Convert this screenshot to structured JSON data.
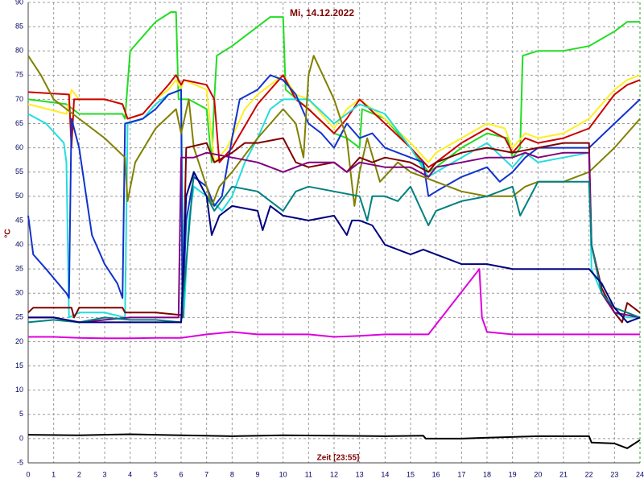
{
  "chart_data": {
    "type": "line",
    "title": "Mi, 14.12.2022",
    "x_label": "Zeit [23:55]",
    "y_label": "°C",
    "xlim": [
      0,
      24
    ],
    "ylim": [
      -5,
      90
    ],
    "xticks": [
      0,
      1,
      2,
      3,
      4,
      5,
      6,
      7,
      8,
      9,
      10,
      11,
      12,
      13,
      14,
      15,
      16,
      17,
      18,
      19,
      20,
      21,
      22,
      23,
      24
    ],
    "yticks": [
      -5,
      0,
      5,
      10,
      15,
      20,
      25,
      30,
      35,
      40,
      45,
      50,
      55,
      60,
      65,
      70,
      75,
      80,
      85,
      90
    ],
    "grid": true,
    "series": [
      {
        "color": "#22dd22",
        "x": [
          0,
          1.5,
          2,
          3.7,
          3.8,
          4,
          5,
          5.6,
          5.8,
          5.9,
          6.3,
          7,
          7.2,
          7.3,
          7.4,
          8,
          9,
          9.5,
          10,
          10.1,
          11,
          12,
          12.5,
          13,
          13.1,
          14,
          15,
          15.7,
          16,
          17,
          18,
          18.8,
          19,
          19.3,
          19.4,
          20,
          21,
          22,
          23,
          23.5,
          24
        ],
        "values": [
          70,
          69,
          67,
          67,
          66,
          80,
          86,
          88,
          88,
          70,
          70,
          68,
          57,
          70,
          79,
          81,
          85,
          87,
          87,
          72,
          68,
          63,
          62,
          60,
          68,
          66,
          60,
          55,
          56,
          60,
          63,
          62,
          58,
          60,
          79,
          80,
          80,
          81,
          84,
          86,
          86
        ]
      },
      {
        "color": "#ffee22",
        "x": [
          0,
          1.5,
          1.7,
          2,
          3,
          3.7,
          3.9,
          4.5,
          5,
          5.5,
          5.8,
          6,
          6.1,
          7,
          7.3,
          7.8,
          8.5,
          9,
          9.5,
          10,
          10.5,
          11,
          12,
          12.5,
          13,
          14,
          15,
          15.7,
          16,
          17,
          18,
          18.7,
          19,
          19.5,
          20,
          21,
          22,
          23,
          23.5,
          24
        ],
        "values": [
          69,
          67,
          72,
          70,
          70,
          69,
          66,
          67,
          70,
          72,
          74,
          72,
          74,
          72,
          57,
          60,
          68,
          71,
          73,
          75,
          71,
          70,
          64,
          68,
          70,
          66,
          61,
          57,
          59,
          62,
          65,
          64,
          60,
          63,
          62,
          63,
          66,
          72,
          74,
          75
        ]
      },
      {
        "color": "#cc0000",
        "x": [
          0,
          1.6,
          1.7,
          1.8,
          3,
          3.7,
          3.9,
          4.5,
          5,
          5.5,
          5.8,
          6,
          6.1,
          7,
          7.3,
          7.5,
          8,
          9,
          9.5,
          10,
          10.5,
          11,
          12,
          12.5,
          13,
          14,
          15,
          15.7,
          16,
          17,
          18,
          18.7,
          19,
          19.5,
          20,
          21,
          22,
          23,
          23.5,
          24
        ],
        "values": [
          71.5,
          71,
          60,
          70,
          70,
          69,
          66,
          67,
          70,
          73,
          75,
          73,
          74,
          73,
          70,
          57,
          60,
          69,
          72,
          75,
          70,
          68,
          63,
          66,
          70,
          65,
          60,
          56,
          57,
          61,
          64,
          62,
          59,
          62,
          61,
          62,
          64,
          71,
          73,
          74
        ]
      },
      {
        "color": "#22dddd",
        "x": [
          0,
          0.7,
          1.4,
          1.5,
          1.6,
          2,
          3,
          3.8,
          3.9,
          4.5,
          5,
          5.5,
          6,
          6.1,
          6.3,
          6.5,
          7,
          7.4,
          7.6,
          8,
          8.5,
          9,
          9.5,
          10,
          11,
          12,
          12.5,
          13,
          14,
          15,
          15.7,
          16,
          17,
          18,
          19,
          19.5,
          20,
          21,
          22,
          22.1,
          22.5,
          23,
          23.5,
          24
        ],
        "values": [
          67,
          65,
          61,
          57,
          25,
          26,
          26,
          25,
          65,
          66,
          69,
          71,
          72,
          25,
          45,
          52,
          50,
          48,
          47,
          50,
          57,
          62,
          68,
          70,
          70,
          65,
          67,
          69,
          67,
          60,
          54,
          55,
          58,
          61,
          56,
          59,
          57,
          58,
          59,
          35,
          30,
          26,
          25,
          25
        ]
      },
      {
        "color": "#1133cc",
        "x": [
          0,
          0.2,
          0.7,
          1.5,
          1.6,
          1.7,
          2,
          2.5,
          3,
          3.5,
          3.7,
          3.8,
          4.5,
          5,
          5.5,
          6,
          6.05,
          6.2,
          6.5,
          7,
          7.3,
          7.6,
          8,
          8.3,
          9,
          9.5,
          10,
          10.5,
          11,
          11.5,
          12,
          12.5,
          13,
          13.5,
          14,
          15,
          15.5,
          15.7,
          16,
          17,
          18,
          18.5,
          19,
          19.5,
          20,
          21,
          22,
          23,
          24
        ],
        "values": [
          46,
          38,
          35,
          30,
          29,
          66,
          60,
          42,
          36,
          32,
          29,
          65,
          66,
          68,
          71,
          72,
          25,
          45,
          54,
          52,
          48,
          50,
          62,
          70,
          72,
          75,
          74,
          71,
          65,
          63,
          60,
          65,
          62,
          63,
          60,
          58,
          57,
          50,
          51,
          54,
          56,
          53,
          55,
          58,
          60,
          60,
          60,
          65,
          70
        ]
      },
      {
        "color": "#808000",
        "x": [
          0,
          0.5,
          1,
          2,
          3,
          3.8,
          3.9,
          4.2,
          5,
          5.8,
          6,
          6.3,
          6.5,
          7,
          7.2,
          7.5,
          8,
          9,
          10,
          10.5,
          10.8,
          11,
          11.2,
          12,
          12.5,
          12.8,
          13,
          13.3,
          13.8,
          14.5,
          15,
          16,
          17,
          18,
          19,
          19.5,
          20,
          21,
          22,
          23,
          24
        ],
        "values": [
          79,
          75,
          70,
          66,
          62,
          58,
          49,
          57,
          64,
          68,
          63,
          70,
          60,
          52,
          48,
          52,
          55,
          62,
          68,
          65,
          58,
          75,
          79,
          70,
          62,
          48,
          55,
          62,
          53,
          57,
          55,
          53,
          51,
          50,
          50,
          52,
          53,
          53,
          55,
          60,
          66
        ]
      },
      {
        "color": "#800000",
        "x": [
          0,
          0.2,
          1.7,
          1.8,
          2,
          3.7,
          3.8,
          5,
          6,
          6.05,
          6.2,
          7,
          7.3,
          8,
          8.5,
          9,
          10,
          10.5,
          11,
          12,
          12.5,
          13,
          13.5,
          14,
          15,
          15.7,
          16,
          17,
          18,
          19,
          20,
          21,
          22,
          22.1,
          22.5,
          23,
          23.3,
          23.5,
          24
        ],
        "values": [
          26,
          27,
          27,
          25,
          27,
          27,
          26,
          26,
          25.5,
          25,
          60,
          61,
          57,
          59,
          61,
          61,
          62,
          57,
          56,
          57,
          55,
          58,
          57,
          58,
          57,
          55,
          57,
          59,
          60,
          59,
          60,
          61,
          61,
          40,
          31,
          26,
          24,
          28,
          26
        ]
      },
      {
        "color": "#800080",
        "x": [
          0,
          1,
          2,
          3,
          4,
          5,
          5.9,
          6,
          6.5,
          7,
          8,
          9,
          10,
          11,
          12,
          12.5,
          13,
          14,
          15,
          15.7,
          16,
          17,
          18,
          19,
          19.5,
          20,
          21,
          22,
          22.1,
          22.5,
          23,
          24
        ],
        "values": [
          25,
          25,
          24,
          24.5,
          25,
          25,
          25,
          58,
          58,
          59,
          58,
          57,
          55,
          57,
          57,
          55,
          57,
          56,
          56,
          54,
          56,
          57,
          58,
          58,
          59,
          58,
          59,
          59,
          40,
          30,
          26,
          25
        ]
      },
      {
        "color": "#008080",
        "x": [
          0,
          1,
          2,
          3,
          4,
          5,
          6,
          6.1,
          6.5,
          7,
          7.3,
          8,
          9,
          9.5,
          10,
          10.5,
          11,
          12,
          13,
          13.3,
          13.5,
          14,
          14.5,
          15,
          15.7,
          16,
          17,
          18,
          19,
          19.3,
          20,
          21,
          22,
          22.1,
          22.5,
          23,
          24
        ],
        "values": [
          24,
          24.5,
          24,
          25,
          24.5,
          24.5,
          24,
          30,
          55,
          50,
          47,
          52,
          51,
          49,
          47,
          51,
          52,
          51,
          50,
          45,
          50,
          50,
          49,
          52,
          44,
          47,
          49,
          50,
          52,
          46,
          53,
          53,
          53,
          40,
          30,
          27,
          25
        ]
      },
      {
        "color": "#000080",
        "x": [
          0,
          1,
          2,
          3,
          4,
          5,
          6,
          6.2,
          6.5,
          7,
          7.2,
          7.5,
          8,
          9,
          9.2,
          9.5,
          10,
          11,
          12,
          12.5,
          12.7,
          13,
          13.5,
          14,
          14.5,
          15,
          15.5,
          16,
          17,
          18,
          19,
          20,
          21,
          22,
          22.5,
          23,
          23.5,
          24
        ],
        "values": [
          25,
          25,
          24,
          24,
          24,
          24,
          24,
          50,
          55,
          50,
          42,
          46,
          48,
          47,
          43,
          48,
          46,
          45,
          46,
          42,
          45,
          45,
          44,
          40,
          39,
          38,
          39,
          38,
          36,
          36,
          35,
          35,
          35,
          35,
          32,
          27,
          24,
          25
        ]
      },
      {
        "color": "#dd00dd",
        "x": [
          0,
          1,
          2,
          3,
          4,
          5,
          6,
          7,
          8,
          9,
          10,
          11,
          12,
          13,
          14,
          15,
          15.7,
          17.7,
          17.8,
          18,
          19,
          20,
          22,
          24
        ],
        "values": [
          21,
          21,
          20.8,
          20.7,
          20.7,
          20.8,
          20.8,
          21.5,
          22,
          21.5,
          21.5,
          21.5,
          21,
          21.2,
          21.5,
          21.5,
          21.5,
          35,
          25,
          22,
          21.5,
          21.5,
          21.5,
          21.5
        ]
      },
      {
        "color": "#000000",
        "x": [
          0,
          2,
          4,
          6,
          8,
          10,
          12,
          14,
          15.5,
          15.6,
          17,
          18,
          20,
          22,
          22.1,
          23,
          23.5,
          24
        ],
        "values": [
          0.8,
          0.7,
          0.9,
          0.7,
          0.5,
          0.7,
          0.6,
          0.5,
          0.6,
          0,
          0,
          0.2,
          0.5,
          0.5,
          -0.8,
          -1,
          -2,
          -0.3
        ]
      }
    ]
  }
}
